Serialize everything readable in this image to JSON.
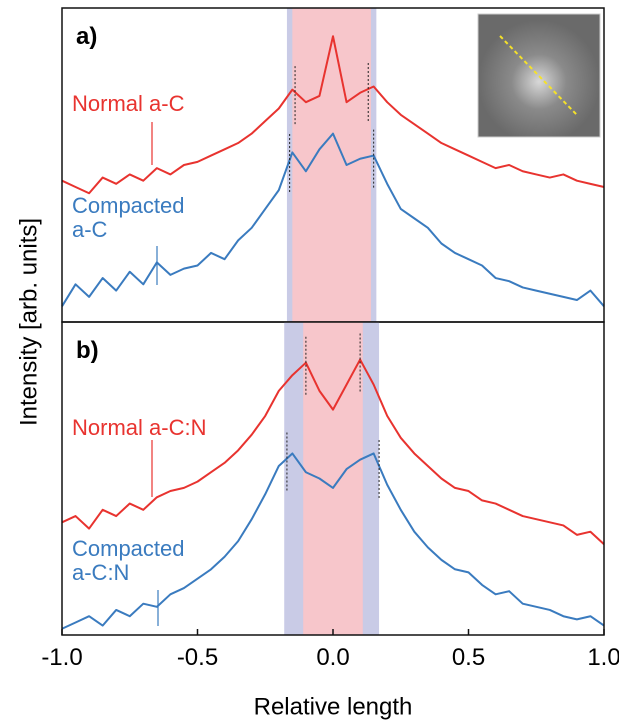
{
  "chart_data": [
    {
      "type": "line",
      "panel_label": "a)",
      "ylabel": "Intensity [arb. units]",
      "xlim": [
        -1,
        1
      ],
      "ylim": [
        0,
        100
      ],
      "bands": [
        {
          "color": "#c9cbe6",
          "range": [
            -0.17,
            0.16
          ]
        },
        {
          "color": "#f7c6cb",
          "range": [
            -0.15,
            0.14
          ]
        }
      ],
      "x": [
        -1.0,
        -0.95,
        -0.9,
        -0.85,
        -0.8,
        -0.75,
        -0.7,
        -0.65,
        -0.6,
        -0.55,
        -0.5,
        -0.45,
        -0.4,
        -0.35,
        -0.3,
        -0.25,
        -0.2,
        -0.15,
        -0.1,
        -0.05,
        0.0,
        0.05,
        0.1,
        0.15,
        0.2,
        0.25,
        0.3,
        0.35,
        0.4,
        0.45,
        0.5,
        0.55,
        0.6,
        0.65,
        0.7,
        0.75,
        0.8,
        0.85,
        0.9,
        0.95,
        1.0
      ],
      "series": [
        {
          "name": "Normal a-C",
          "color": "#e8332f",
          "peaks": [
            -0.14,
            0.13
          ],
          "values": [
            45,
            43,
            41,
            46,
            44,
            47,
            45,
            49,
            47,
            50,
            51,
            53,
            55,
            57,
            60,
            64,
            68,
            74,
            70,
            72,
            91,
            70,
            73,
            75,
            70,
            66,
            63,
            60,
            57,
            55,
            53,
            51,
            49,
            50,
            48,
            47,
            46,
            47,
            45,
            44,
            43
          ]
        },
        {
          "name": "Compacted a-C",
          "color": "#3a7bbf",
          "peaks": [
            -0.16,
            0.15
          ],
          "values": [
            5,
            12,
            8,
            14,
            10,
            16,
            12,
            19,
            15,
            17,
            18,
            22,
            20,
            26,
            30,
            36,
            42,
            54,
            48,
            55,
            60,
            50,
            52,
            53,
            44,
            36,
            33,
            30,
            25,
            22,
            20,
            18,
            14,
            13,
            11,
            10,
            9,
            8,
            7,
            10,
            5
          ]
        }
      ]
    },
    {
      "type": "line",
      "panel_label": "b)",
      "xlabel": "Relative length",
      "xlim": [
        -1,
        1
      ],
      "ylim": [
        0,
        100
      ],
      "xticks": [
        {
          "value": -1,
          "label": "-1.0"
        },
        -0.5,
        {
          "value": 0,
          "label": "0.0"
        },
        0.5,
        {
          "value": 1,
          "label": "1.0"
        }
      ],
      "bands": [
        {
          "color": "#c9cbe6",
          "range": [
            -0.18,
            0.17
          ]
        },
        {
          "color": "#f7c6cb",
          "range": [
            -0.11,
            0.11
          ]
        }
      ],
      "x": [
        -1.0,
        -0.95,
        -0.9,
        -0.85,
        -0.8,
        -0.75,
        -0.7,
        -0.65,
        -0.6,
        -0.55,
        -0.5,
        -0.45,
        -0.4,
        -0.35,
        -0.3,
        -0.25,
        -0.2,
        -0.15,
        -0.1,
        -0.05,
        0.0,
        0.05,
        0.1,
        0.15,
        0.2,
        0.25,
        0.3,
        0.35,
        0.4,
        0.45,
        0.5,
        0.55,
        0.6,
        0.65,
        0.7,
        0.75,
        0.8,
        0.85,
        0.9,
        0.95,
        1.0
      ],
      "series": [
        {
          "name": "Normal a-C:N",
          "color": "#e8332f",
          "peaks": [
            -0.1,
            0.1
          ],
          "values": [
            36,
            38,
            34,
            40,
            38,
            42,
            40,
            44,
            46,
            47,
            49,
            52,
            55,
            59,
            64,
            70,
            78,
            83,
            87,
            78,
            72,
            80,
            88,
            80,
            70,
            63,
            58,
            54,
            50,
            47,
            46,
            43,
            42,
            40,
            38,
            37,
            36,
            35,
            32,
            33,
            29
          ]
        },
        {
          "name": "Compacted a-C:N",
          "color": "#3a7bbf",
          "peaks": [
            -0.17,
            0.17
          ],
          "values": [
            2,
            4,
            6,
            3,
            8,
            6,
            10,
            9,
            13,
            15,
            18,
            21,
            25,
            30,
            37,
            45,
            54,
            58,
            52,
            50,
            47,
            53,
            56,
            58,
            48,
            40,
            33,
            28,
            24,
            21,
            20,
            16,
            13,
            14,
            10,
            9,
            8,
            6,
            5,
            6,
            3
          ]
        }
      ]
    }
  ]
}
